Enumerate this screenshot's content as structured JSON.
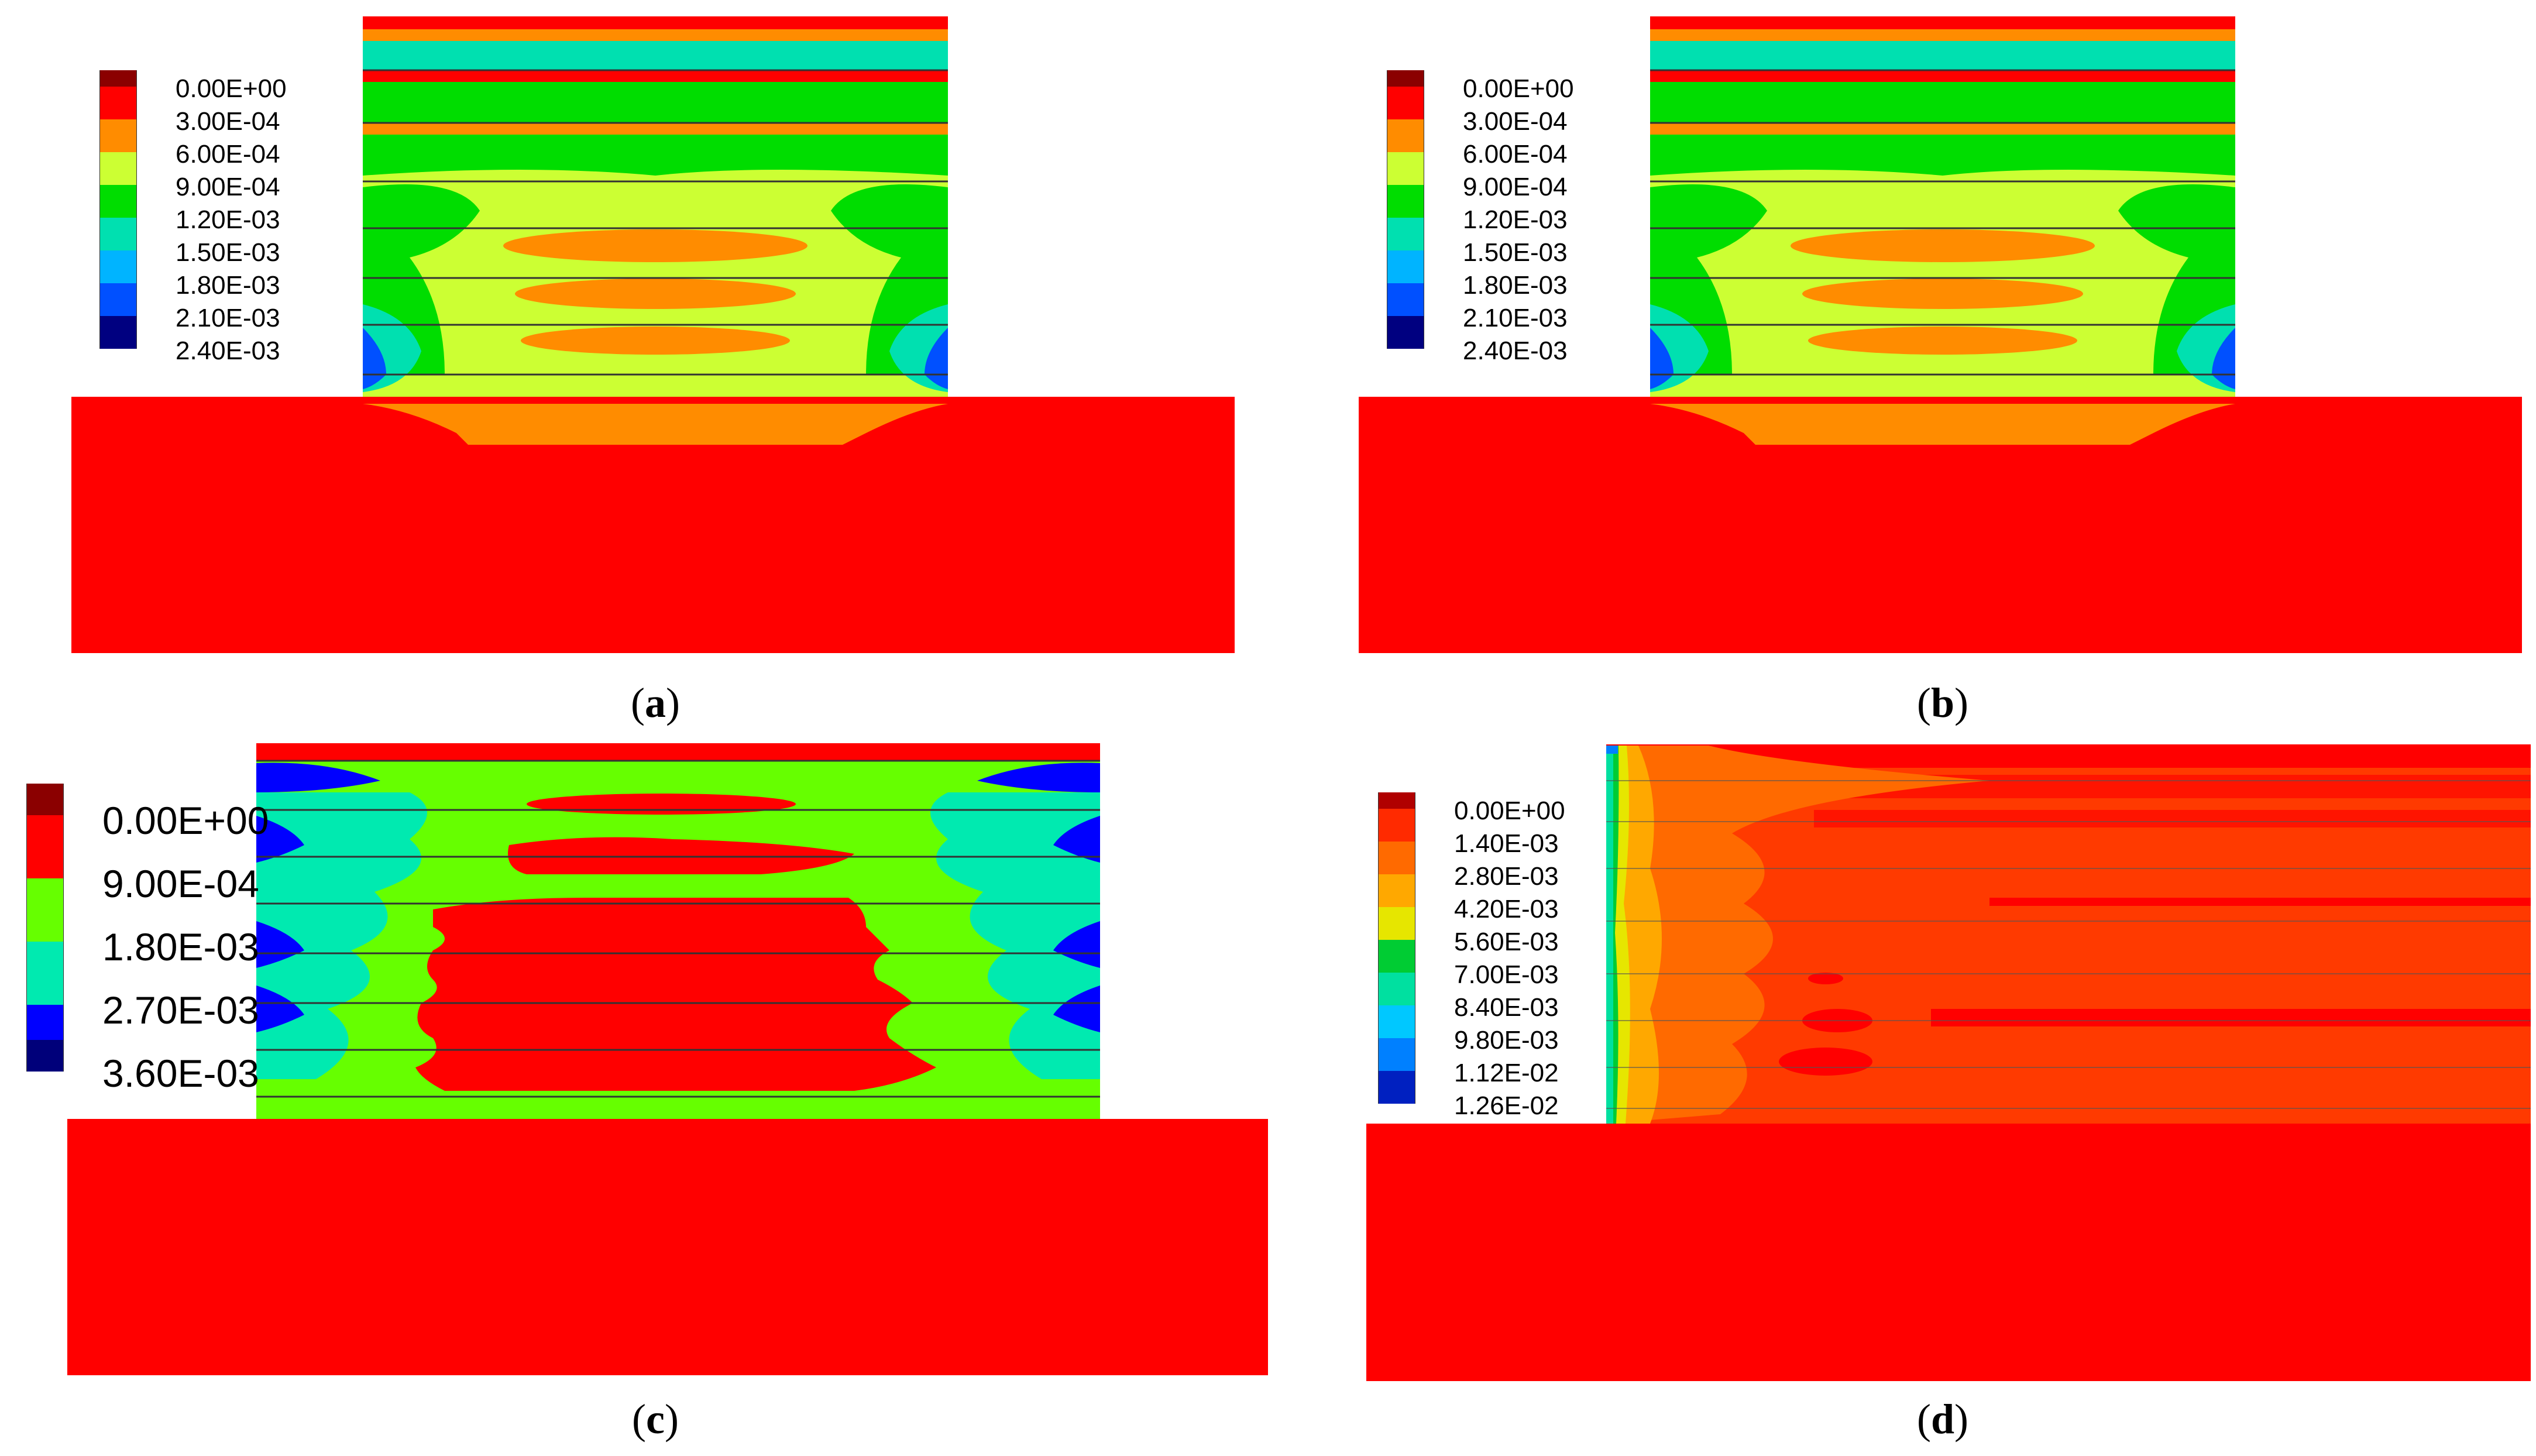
{
  "panels": [
    {
      "id": "a",
      "caption_open": "(",
      "caption_letter": "a",
      "caption_close": ")",
      "legend": {
        "labels": [
          "0.00E+00",
          "3.00E-04",
          "6.00E-04",
          "9.00E-04",
          "1.20E-03",
          "1.50E-03",
          "1.80E-03",
          "2.10E-03",
          "2.40E-03"
        ],
        "colors": [
          "#8b0000",
          "#ff0000",
          "#ff8c00",
          "#ccff33",
          "#00dd00",
          "#00e0b0",
          "#00b4ff",
          "#0050ff",
          "#000080"
        ]
      }
    },
    {
      "id": "b",
      "caption_open": "(",
      "caption_letter": "b",
      "caption_close": ")",
      "legend": {
        "labels": [
          "0.00E+00",
          "3.00E-04",
          "6.00E-04",
          "9.00E-04",
          "1.20E-03",
          "1.50E-03",
          "1.80E-03",
          "2.10E-03",
          "2.40E-03"
        ],
        "colors": [
          "#8b0000",
          "#ff0000",
          "#ff8c00",
          "#ccff33",
          "#00dd00",
          "#00e0b0",
          "#00b4ff",
          "#0050ff",
          "#000080"
        ]
      }
    },
    {
      "id": "c",
      "caption_open": "(",
      "caption_letter": "c",
      "caption_close": ")",
      "legend": {
        "labels": [
          "0.00E+00",
          "9.00E-04",
          "1.80E-03",
          "2.70E-03",
          "3.60E-03"
        ],
        "colors": [
          "#8b0000",
          "#ff0000",
          "#66ff00",
          "#00eab0",
          "#0000ff",
          "#00007a"
        ]
      }
    },
    {
      "id": "d",
      "caption_open": "(",
      "caption_letter": "d",
      "caption_close": ")",
      "legend": {
        "labels": [
          "0.00E+00",
          "1.40E-03",
          "2.80E-03",
          "4.20E-03",
          "5.60E-03",
          "7.00E-03",
          "8.40E-03",
          "9.80E-03",
          "1.12E-02",
          "1.26E-02"
        ],
        "colors": [
          "#b00000",
          "#ff2a00",
          "#ff6a00",
          "#ffa800",
          "#e6e600",
          "#00cc33",
          "#00e0a0",
          "#00c8ff",
          "#0080ff",
          "#0020c0"
        ]
      }
    }
  ]
}
